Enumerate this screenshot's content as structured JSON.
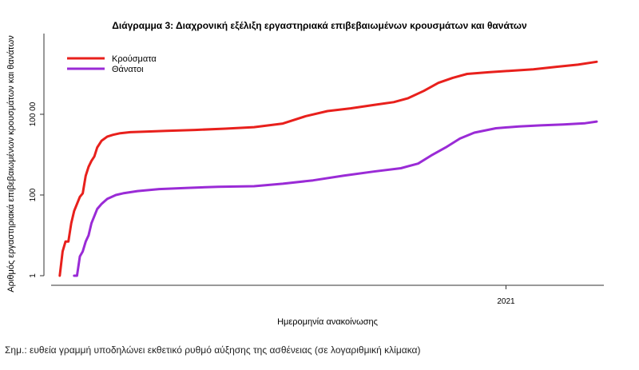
{
  "chart_data": {
    "type": "line",
    "title": "Διάγραμμα 3: Διαχρονική εξέλιξη εργαστηριακά επιβεβαιωμένων κρουσμάτων και θανάτων",
    "xlabel": "Ημερομηνία ανακοίνωσης",
    "ylabel": "Αριθμός εργαστηριακά επιβεβαιωμένων κρουσμάτων και θανάτων",
    "y_scale": "log10",
    "ylim": [
      1,
      1000000
    ],
    "y_ticks": [
      1,
      100,
      10000
    ],
    "y_tick_labels": [
      "1",
      "100",
      "100 00"
    ],
    "x_type": "date",
    "xlim": [
      "2020-02-20",
      "2021-03-10"
    ],
    "x_ticks": [
      "2021-01-01"
    ],
    "x_tick_labels": [
      "2021"
    ],
    "legend_position": "top-left",
    "grid": false,
    "series": [
      {
        "name": "Κρούσματα",
        "color": "#e8201c",
        "x": [
          "2020-02-26",
          "2020-02-28",
          "2020-03-01",
          "2020-03-03",
          "2020-03-05",
          "2020-03-07",
          "2020-03-09",
          "2020-03-11",
          "2020-03-13",
          "2020-03-15",
          "2020-03-17",
          "2020-03-19",
          "2020-03-21",
          "2020-03-23",
          "2020-03-26",
          "2020-03-30",
          "2020-04-03",
          "2020-04-08",
          "2020-04-15",
          "2020-04-25",
          "2020-05-10",
          "2020-05-30",
          "2020-06-20",
          "2020-07-10",
          "2020-07-30",
          "2020-08-15",
          "2020-08-30",
          "2020-09-15",
          "2020-10-01",
          "2020-10-15",
          "2020-10-25",
          "2020-11-05",
          "2020-11-15",
          "2020-11-25",
          "2020-12-05",
          "2020-12-20",
          "2021-01-05",
          "2021-01-20",
          "2021-02-05",
          "2021-02-20",
          "2021-03-05"
        ],
        "values": [
          1,
          4,
          7,
          7,
          20,
          40,
          60,
          90,
          110,
          300,
          500,
          700,
          900,
          1500,
          2200,
          2800,
          3100,
          3400,
          3600,
          3700,
          3900,
          4100,
          4400,
          4800,
          5900,
          9000,
          12000,
          14000,
          17000,
          20000,
          25000,
          38000,
          60000,
          80000,
          100000,
          110000,
          120000,
          130000,
          150000,
          170000,
          200000
        ]
      },
      {
        "name": "Θάνατοι",
        "color": "#9a2bd6",
        "x": [
          "2020-03-07",
          "2020-03-09",
          "2020-03-11",
          "2020-03-13",
          "2020-03-15",
          "2020-03-17",
          "2020-03-19",
          "2020-03-21",
          "2020-03-23",
          "2020-03-26",
          "2020-03-30",
          "2020-04-05",
          "2020-04-10",
          "2020-04-20",
          "2020-05-05",
          "2020-05-25",
          "2020-06-15",
          "2020-07-10",
          "2020-07-30",
          "2020-08-20",
          "2020-09-10",
          "2020-10-01",
          "2020-10-20",
          "2020-11-01",
          "2020-11-10",
          "2020-11-20",
          "2020-11-30",
          "2020-12-10",
          "2020-12-25",
          "2021-01-10",
          "2021-01-25",
          "2021-02-10",
          "2021-02-25",
          "2021-03-05"
        ],
        "values": [
          1,
          1,
          3,
          4,
          7,
          10,
          20,
          30,
          45,
          60,
          80,
          100,
          110,
          125,
          140,
          150,
          160,
          165,
          190,
          230,
          300,
          380,
          460,
          600,
          950,
          1500,
          2500,
          3500,
          4500,
          5000,
          5300,
          5600,
          6000,
          6600
        ]
      }
    ]
  },
  "note": "Σημ.: ευθεία γραμμή υποδηλώνει εκθετικό ρυθμό αύξησης της ασθένειας (σε λογαριθμική κλίμακα)"
}
